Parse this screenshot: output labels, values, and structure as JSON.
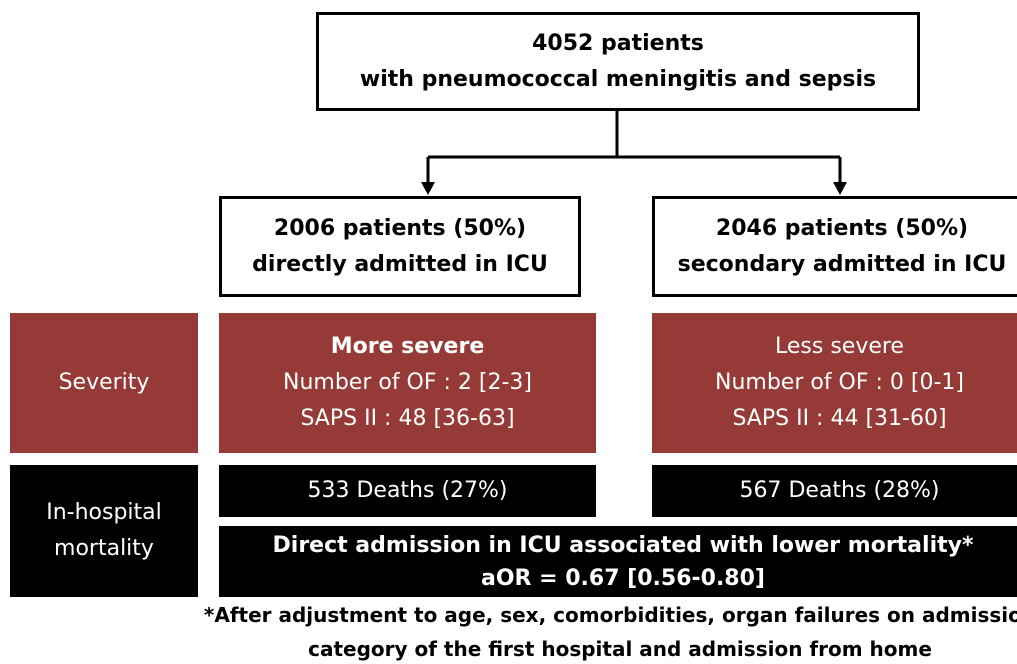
{
  "top": {
    "lines": [
      "4052 patients",
      "with pneumococcal meningitis and sepsis"
    ]
  },
  "left": {
    "title": [
      "2006 patients (50%)",
      "directly admitted in ICU"
    ],
    "severity": [
      "More severe",
      "Number of OF : 2 [2-3]",
      "SAPS II : 48 [36-63]"
    ],
    "deaths": "533 Deaths (27%)"
  },
  "right": {
    "title": [
      "2046 patients (50%)",
      "secondary admitted in ICU"
    ],
    "severity": [
      "Less severe",
      "Number of OF : 0 [0-1]",
      "SAPS II : 44 [31-60]"
    ],
    "deaths": "567 Deaths (28%)"
  },
  "row_labels": {
    "severity": "Severity",
    "mortality": [
      "In-hospital",
      "mortality"
    ]
  },
  "conclusion": [
    "Direct admission in ICU associated with lower mortality*",
    "aOR = 0.67 [0.56-0.80]"
  ],
  "footnote": [
    "*After adjustment to age, sex, comorbidities, organ failures on admission",
    "category of the first hospital and admission from home"
  ]
}
